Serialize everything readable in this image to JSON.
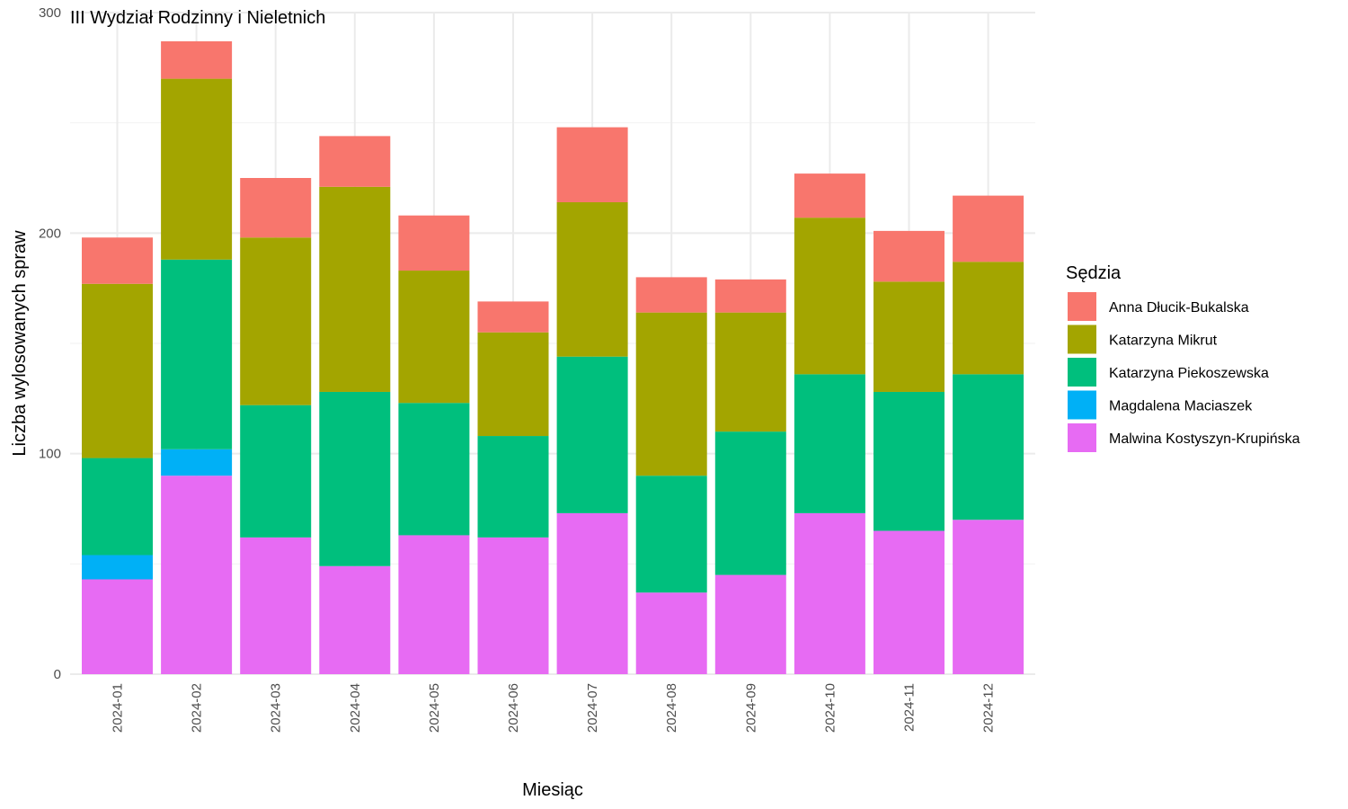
{
  "chart_data": {
    "type": "bar",
    "stacked": true,
    "title": "III Wydział Rodzinny i Nieletnich",
    "xlabel": "Miesiąc",
    "ylabel": "Liczba wylosowanych spraw",
    "ylim": [
      0,
      300
    ],
    "yticks": [
      0,
      100,
      200,
      300
    ],
    "grid": true,
    "legend_title": "Sędzia",
    "legend_position": "right",
    "categories": [
      "2024-01",
      "2024-02",
      "2024-03",
      "2024-04",
      "2024-05",
      "2024-06",
      "2024-07",
      "2024-08",
      "2024-09",
      "2024-10",
      "2024-11",
      "2024-12"
    ],
    "series": [
      {
        "name": "Malwina Kostyszyn-Krupińska",
        "color": "#E76BF3",
        "values": [
          43,
          90,
          62,
          49,
          63,
          62,
          73,
          37,
          45,
          73,
          65,
          70
        ]
      },
      {
        "name": "Magdalena Maciaszek",
        "color": "#00B0F6",
        "values": [
          11,
          12,
          0,
          0,
          0,
          0,
          0,
          0,
          0,
          0,
          0,
          0
        ]
      },
      {
        "name": "Katarzyna Piekoszewska",
        "color": "#00BF7D",
        "values": [
          44,
          86,
          60,
          79,
          60,
          46,
          71,
          53,
          65,
          63,
          63,
          66
        ]
      },
      {
        "name": "Katarzyna Mikrut",
        "color": "#A3A500",
        "values": [
          79,
          82,
          76,
          93,
          60,
          47,
          70,
          74,
          54,
          71,
          50,
          51
        ]
      },
      {
        "name": "Anna Dłucik-Bukalska",
        "color": "#F8766D",
        "values": [
          21,
          17,
          27,
          23,
          25,
          14,
          34,
          16,
          15,
          20,
          23,
          30
        ]
      }
    ],
    "legend_order": [
      "Anna Dłucik-Bukalska",
      "Katarzyna Mikrut",
      "Katarzyna Piekoszewska",
      "Magdalena Maciaszek",
      "Malwina Kostyszyn-Krupińska"
    ]
  }
}
